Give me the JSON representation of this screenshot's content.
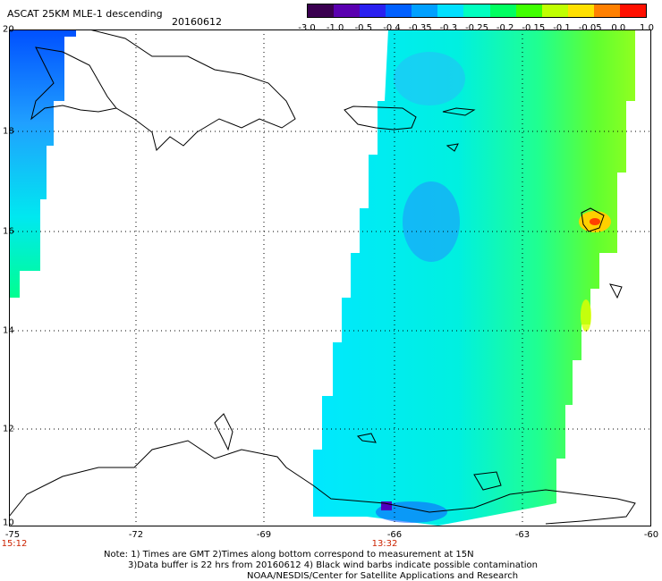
{
  "header": {
    "title": "ASCAT 25KM MLE-1 descending",
    "date": "20160612"
  },
  "colorbar": {
    "labels": [
      "-3.0",
      "-1.0",
      "-0.5",
      "-0.4",
      "-0.35",
      "-0.3",
      "-0.25",
      "-0.2",
      "-0.15",
      "-0.1",
      "-0.05",
      "0.0",
      "1.0"
    ],
    "colors": [
      "#3a0050",
      "#5a00b0",
      "#2a20f0",
      "#0060ff",
      "#00a0ff",
      "#00e0ff",
      "#00ffc0",
      "#00ff60",
      "#40ff00",
      "#c0ff00",
      "#ffe000",
      "#ff8000",
      "#ff1000"
    ]
  },
  "map": {
    "lon_range": [
      -75,
      -60
    ],
    "lat_range": [
      10,
      20
    ],
    "lon_ticks": [
      "-75",
      "-72",
      "-69",
      "-66",
      "-63",
      "-60"
    ],
    "lat_ticks": [
      "20",
      "18",
      "16",
      "14",
      "12",
      "10"
    ],
    "pass_times": [
      "15:12",
      "13:32"
    ]
  },
  "notes": [
    "Note: 1) Times are GMT 2)Times along bottom correspond to measurement at 15N",
    "3)Data buffer is 22 hrs from 20160612 4) Black wind barbs indicate possible contamination",
    "NOAA/NESDIS/Center for Satellite Applications and Research"
  ]
}
